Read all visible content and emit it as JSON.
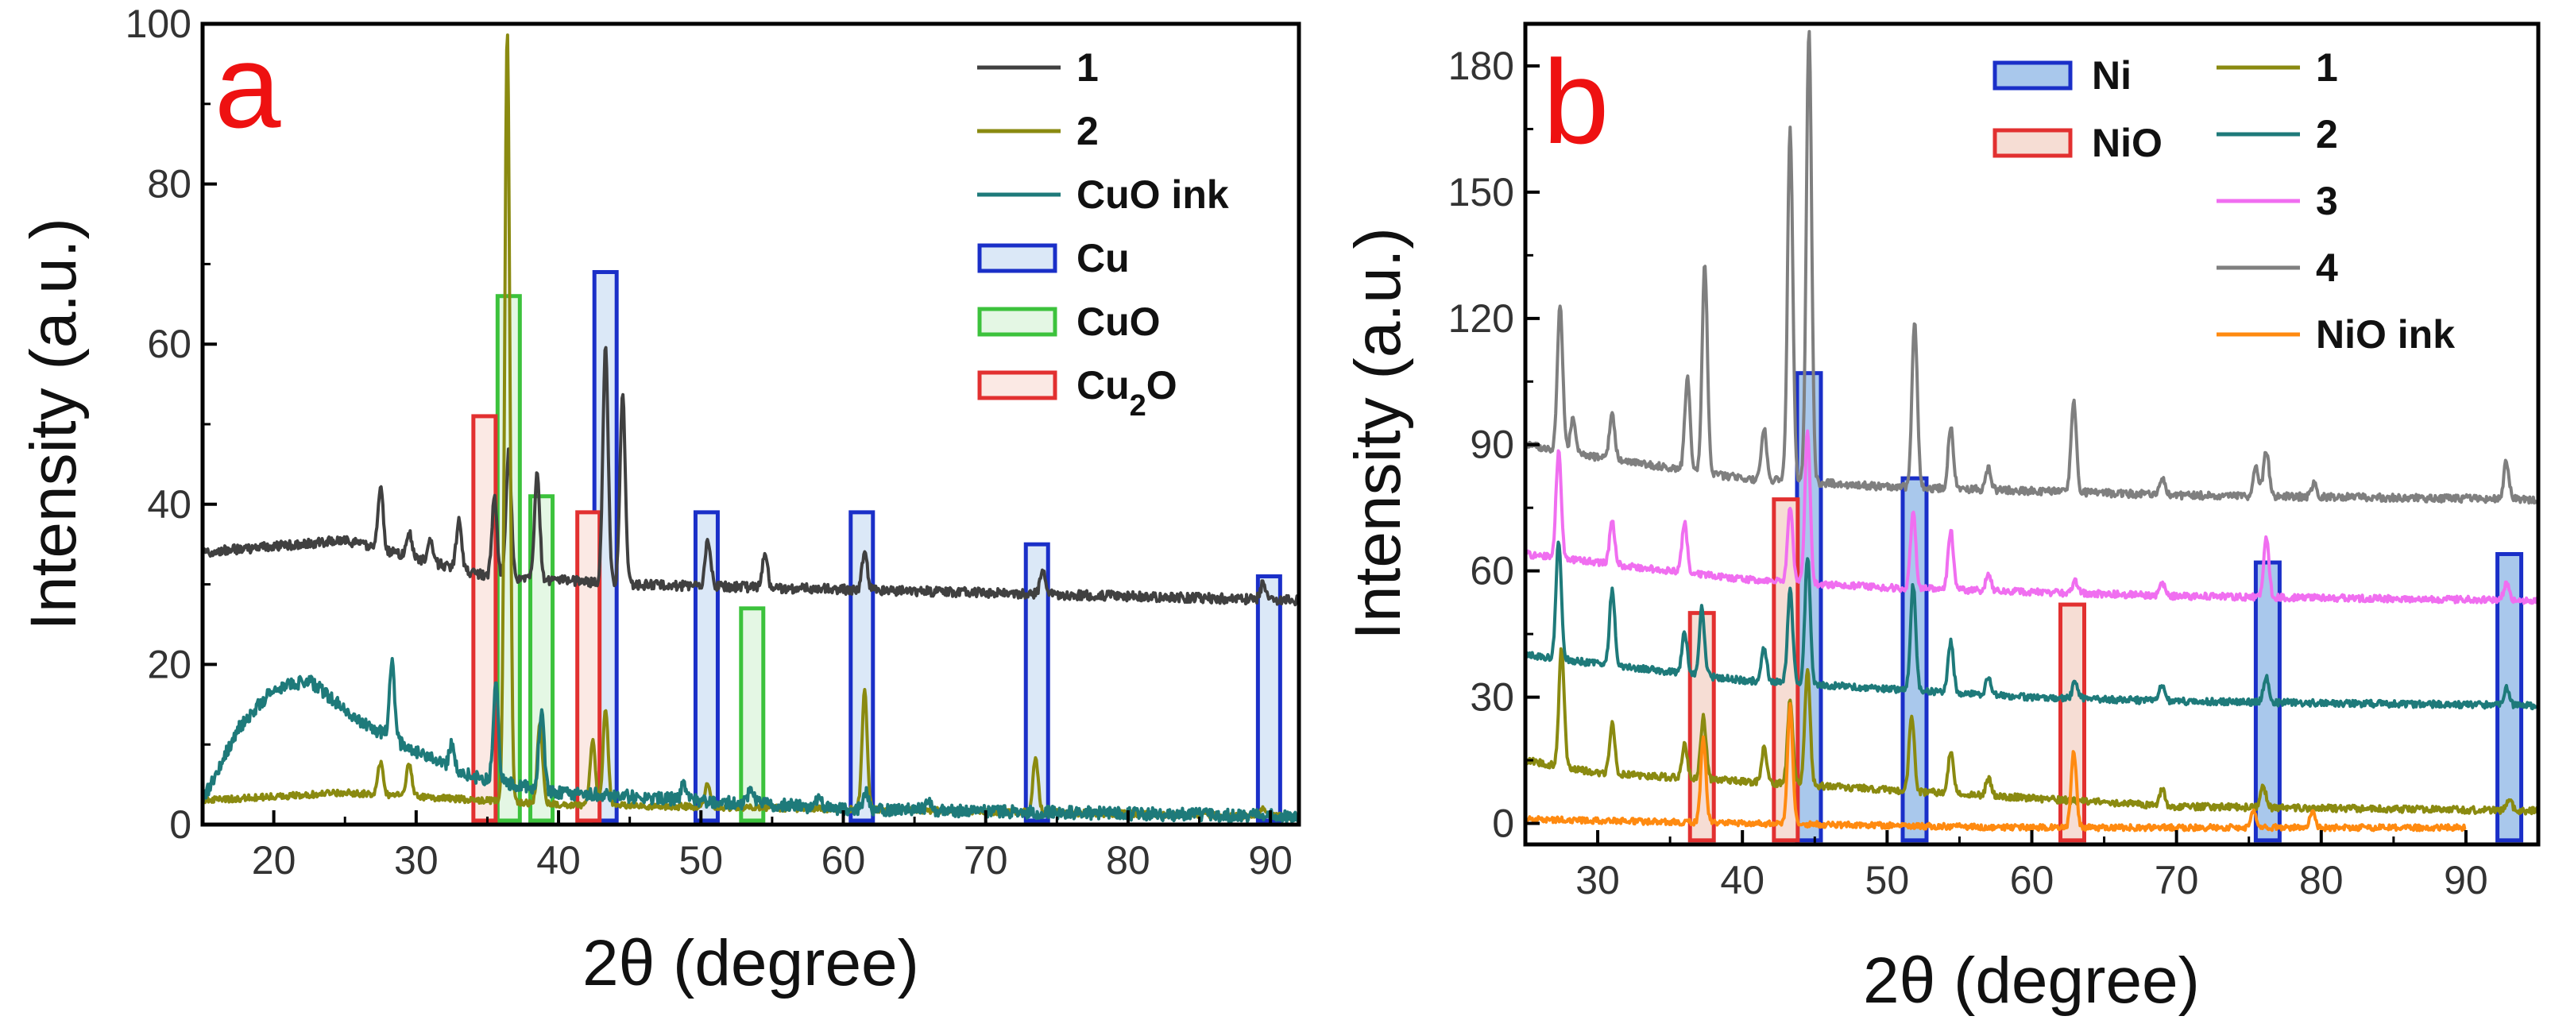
{
  "chart_data": [
    {
      "type": "line",
      "panel_label": "a",
      "xlabel": "2θ (degree)",
      "ylabel": "Intensity (a.u.)",
      "xlim": [
        15,
        92
      ],
      "ylim": [
        0,
        100
      ],
      "x_ticks": [
        "20",
        "30",
        "40",
        "50",
        "60",
        "70",
        "80",
        "90"
      ],
      "y_ticks": [
        "0",
        "20",
        "40",
        "60",
        "80",
        "100"
      ],
      "series": [
        {
          "name": "1",
          "color": "#404040",
          "baseline": [
            [
              15,
              34
            ],
            [
              25,
              35.5
            ],
            [
              35,
              31
            ],
            [
              45,
              30
            ],
            [
              92,
              28
            ]
          ],
          "peaks": [
            [
              27.5,
              8
            ],
            [
              29.5,
              3
            ],
            [
              31,
              3
            ],
            [
              33,
              6
            ],
            [
              35.5,
              10
            ],
            [
              36.5,
              16
            ],
            [
              38.5,
              13
            ],
            [
              43.3,
              30
            ],
            [
              44.5,
              24
            ],
            [
              50.5,
              6
            ],
            [
              54.5,
              4
            ],
            [
              61.5,
              5
            ],
            [
              74,
              3
            ],
            [
              89.5,
              2
            ]
          ],
          "noise": 0.6
        },
        {
          "name": "2",
          "color": "#8a8a10",
          "baseline": [
            [
              15,
              3
            ],
            [
              25,
              4
            ],
            [
              40,
              2.5
            ],
            [
              92,
              1
            ]
          ],
          "peaks": [
            [
              27.5,
              4
            ],
            [
              29.5,
              4
            ],
            [
              36.4,
              96
            ],
            [
              38.7,
              10
            ],
            [
              42.4,
              8
            ],
            [
              43.3,
              12
            ],
            [
              50.5,
              3
            ],
            [
              61.5,
              15
            ],
            [
              73.5,
              7
            ],
            [
              89.5,
              1
            ]
          ],
          "noise": 0.4
        },
        {
          "name": "CuO ink",
          "color": "#1e7a7a",
          "baseline": [
            [
              15,
              3
            ],
            [
              17.5,
              12
            ],
            [
              20,
              17
            ],
            [
              22.5,
              18
            ],
            [
              26,
              13
            ],
            [
              30,
              9
            ],
            [
              34,
              6
            ],
            [
              40,
              4
            ],
            [
              50,
              3
            ],
            [
              60,
              2
            ],
            [
              92,
              1
            ]
          ],
          "peaks": [
            [
              28.3,
              10
            ],
            [
              32.5,
              3
            ],
            [
              35.6,
              12
            ],
            [
              38.8,
              10
            ],
            [
              48.8,
              2
            ],
            [
              53.5,
              2
            ],
            [
              58.3,
              1.5
            ],
            [
              61.6,
              2
            ],
            [
              66,
              1
            ]
          ],
          "noise": 0.8
        }
      ],
      "markers": [
        {
          "name": "Cu",
          "color": "#1a2fc8",
          "fill": "#dbe8f7",
          "bars": [
            [
              43.3,
              69
            ],
            [
              50.4,
              39
            ],
            [
              61.3,
              39
            ],
            [
              73.6,
              35
            ],
            [
              89.9,
              31
            ]
          ]
        },
        {
          "name": "CuO",
          "color": "#3cc23c",
          "fill": "#e4f7e4",
          "bars": [
            [
              36.5,
              66
            ],
            [
              38.8,
              41
            ],
            [
              53.6,
              27
            ]
          ]
        },
        {
          "name": "Cu2O",
          "color": "#e23030",
          "fill": "#fbe9e4",
          "bars": [
            [
              34.8,
              51
            ],
            [
              42.1,
              39
            ]
          ]
        }
      ],
      "legend": [
        {
          "label": "1",
          "kind": "line",
          "color": "#404040"
        },
        {
          "label": "2",
          "kind": "line",
          "color": "#8a8a10"
        },
        {
          "label": "CuO ink",
          "kind": "line",
          "color": "#1e7a7a"
        },
        {
          "label": "Cu",
          "kind": "box",
          "color": "#1a2fc8",
          "fill": "#dbe8f7"
        },
        {
          "label": "CuO",
          "kind": "box",
          "color": "#3cc23c",
          "fill": "#e4f7e4"
        },
        {
          "label": "Cu",
          "sub": "2",
          "tail": "O",
          "kind": "box",
          "color": "#e23030",
          "fill": "#fbe9e4"
        }
      ]
    },
    {
      "type": "line",
      "panel_label": "b",
      "xlabel": "2θ (degree)",
      "ylabel": "Intensity (a.u.)",
      "xlim": [
        25,
        95
      ],
      "ylim": [
        -5,
        190
      ],
      "x_ticks": [
        "30",
        "40",
        "50",
        "60",
        "70",
        "80",
        "90"
      ],
      "y_ticks": [
        "0",
        "30",
        "60",
        "90",
        "120",
        "150",
        "180"
      ],
      "series": [
        {
          "name": "1",
          "color": "#8a8a10",
          "baseline": [
            [
              25,
              15
            ],
            [
              30,
              12
            ],
            [
              40,
              10
            ],
            [
              50,
              8
            ],
            [
              60,
              6
            ],
            [
              70,
              4
            ],
            [
              95,
              3
            ]
          ],
          "peaks": [
            [
              27.5,
              28
            ],
            [
              31,
              12
            ],
            [
              36,
              8
            ],
            [
              37.3,
              15
            ],
            [
              41.5,
              8
            ],
            [
              43.3,
              20
            ],
            [
              44.5,
              28
            ],
            [
              51.7,
              18
            ],
            [
              54.4,
              10
            ],
            [
              57,
              4
            ],
            [
              69,
              4
            ],
            [
              76,
              5
            ],
            [
              93,
              3
            ]
          ],
          "noise": 0.8
        },
        {
          "name": "2",
          "color": "#1e7a7a",
          "baseline": [
            [
              25,
              40
            ],
            [
              30,
              38
            ],
            [
              40,
              34
            ],
            [
              50,
              32
            ],
            [
              60,
              30
            ],
            [
              70,
              29
            ],
            [
              95,
              28
            ]
          ],
          "peaks": [
            [
              27.3,
              28
            ],
            [
              31,
              18
            ],
            [
              36,
              10
            ],
            [
              37.2,
              16
            ],
            [
              41.5,
              8
            ],
            [
              43.3,
              22
            ],
            [
              44.5,
              30
            ],
            [
              51.8,
              25
            ],
            [
              54.4,
              12
            ],
            [
              57,
              4
            ],
            [
              63,
              4
            ],
            [
              69,
              4
            ],
            [
              76.2,
              6
            ],
            [
              92.8,
              4
            ]
          ],
          "noise": 0.8
        },
        {
          "name": "3",
          "color": "#f06ef0",
          "baseline": [
            [
              25,
              64
            ],
            [
              30,
              62
            ],
            [
              40,
              58
            ],
            [
              50,
              56
            ],
            [
              60,
              55
            ],
            [
              70,
              54
            ],
            [
              95,
              53
            ]
          ],
          "peaks": [
            [
              27.3,
              25
            ],
            [
              31,
              10
            ],
            [
              36,
              12
            ],
            [
              43.3,
              18
            ],
            [
              44.5,
              36
            ],
            [
              51.8,
              18
            ],
            [
              54.4,
              14
            ],
            [
              57,
              4
            ],
            [
              63,
              3
            ],
            [
              69,
              3
            ],
            [
              76.2,
              14
            ],
            [
              92.8,
              4
            ]
          ],
          "noise": 0.8
        },
        {
          "name": "4",
          "color": "#7f7f7f",
          "baseline": [
            [
              25,
              90
            ],
            [
              30,
              87
            ],
            [
              40,
              82
            ],
            [
              50,
              80
            ],
            [
              60,
              79
            ],
            [
              70,
              78
            ],
            [
              95,
              77
            ]
          ],
          "peaks": [
            [
              27.4,
              35
            ],
            [
              28.3,
              8
            ],
            [
              31,
              11
            ],
            [
              36.2,
              22
            ],
            [
              37.4,
              50
            ],
            [
              41.5,
              12
            ],
            [
              43.3,
              84
            ],
            [
              44.6,
              108
            ],
            [
              51.9,
              40
            ],
            [
              54.4,
              15
            ],
            [
              57,
              5
            ],
            [
              62.9,
              22
            ],
            [
              69,
              4
            ],
            [
              75.5,
              7
            ],
            [
              76.2,
              11
            ],
            [
              79.5,
              3
            ],
            [
              92.8,
              9
            ]
          ],
          "noise": 0.9
        },
        {
          "name": "NiO ink",
          "color": "#ff8a10",
          "baseline": [
            [
              25,
              1
            ],
            [
              40,
              0
            ],
            [
              60,
              -1
            ],
            [
              90,
              -1
            ]
          ],
          "peaks": [
            [
              37.3,
              20
            ],
            [
              43.3,
              28
            ],
            [
              62.9,
              18
            ],
            [
              75.3,
              4
            ],
            [
              79.4,
              4
            ]
          ],
          "noise": 0.7
        }
      ],
      "markers": [
        {
          "name": "Ni",
          "color": "#1a2fc8",
          "fill": "#a9c8ec",
          "bars": [
            [
              44.6,
              107
            ],
            [
              51.9,
              82
            ],
            [
              76.3,
              62
            ],
            [
              93,
              64
            ]
          ]
        },
        {
          "name": "NiO",
          "color": "#e23030",
          "fill": "#f6ddd4",
          "bars": [
            [
              37.2,
              50
            ],
            [
              43.0,
              77
            ],
            [
              62.8,
              52
            ]
          ]
        }
      ],
      "legend": [
        {
          "label": "Ni",
          "kind": "box",
          "color": "#1a2fc8",
          "fill": "#a9c8ec"
        },
        {
          "label": "NiO",
          "kind": "box",
          "color": "#e23030",
          "fill": "#f6ddd4"
        },
        {
          "label": "1",
          "kind": "line",
          "color": "#8a8a10"
        },
        {
          "label": "2",
          "kind": "line",
          "color": "#1e7a7a"
        },
        {
          "label": "3",
          "kind": "line",
          "color": "#f06ef0"
        },
        {
          "label": "4",
          "kind": "line",
          "color": "#7f7f7f"
        },
        {
          "label": "NiO ink",
          "kind": "line",
          "color": "#ff8a10"
        }
      ]
    }
  ]
}
